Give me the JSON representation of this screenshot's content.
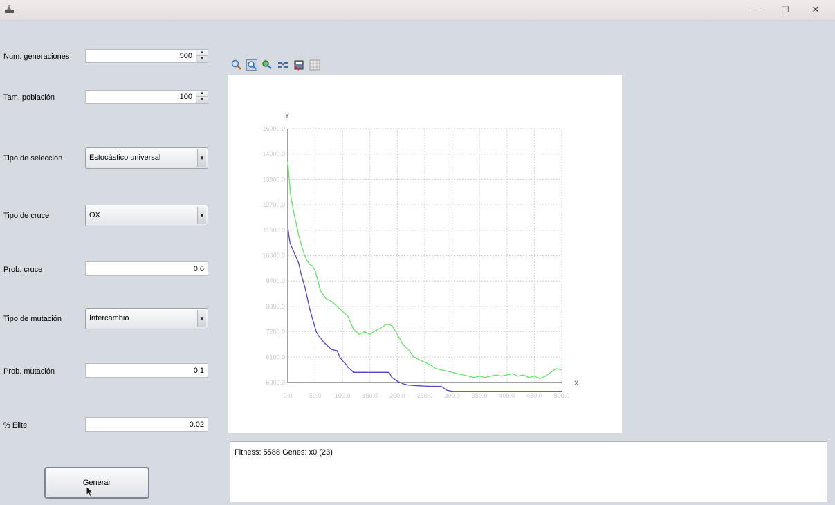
{
  "window": {
    "minimize_glyph": "—",
    "maximize_glyph": "☐",
    "close_glyph": "✕"
  },
  "params": {
    "num_generaciones": {
      "label": "Num. generaciones",
      "value": "500"
    },
    "tam_poblacion": {
      "label": "Tam. población",
      "value": "100"
    },
    "tipo_seleccion": {
      "label": "Tipo de seleccion",
      "value": "Estocástico universal"
    },
    "tipo_cruce": {
      "label": "Tipo de cruce",
      "value": "OX"
    },
    "prob_cruce": {
      "label": "Prob. cruce",
      "value": "0.6"
    },
    "tipo_mutacion": {
      "label": "Tipo de mutación",
      "value": "Intercambio"
    },
    "prob_mutacion": {
      "label": "Prob. mutación",
      "value": "0.1"
    },
    "elite": {
      "label": "% Élite",
      "value": "0.02"
    }
  },
  "generate_button": {
    "label": "Generar"
  },
  "toolbar_icons": [
    "zoom-in-icon",
    "zoom-out-icon",
    "fit-icon",
    "center-icon",
    "save-icon",
    "grid-icon"
  ],
  "output": {
    "text": "Fitness: 5588 Genes: x0 (23)"
  },
  "chart_data": {
    "type": "line",
    "xlabel": "X",
    "ylabel": "Y",
    "xlim": [
      0,
      500
    ],
    "ylim": [
      6000,
      16000
    ],
    "x_ticks": [
      "0.0",
      "50.0",
      "100.0",
      "150.0",
      "200.0",
      "250.0",
      "300.0",
      "350.0",
      "400.0",
      "450.0",
      "500.0"
    ],
    "y_ticks": [
      "6000.0",
      "6100.0",
      "7200.0",
      "8300.0",
      "9400.0",
      "10600.0",
      "11600.0",
      "12700.0",
      "13800.0",
      "14900.0",
      "16000.0"
    ],
    "grid": true,
    "series": [
      {
        "color": "#66e26a",
        "x": [
          0,
          5,
          10,
          15,
          20,
          25,
          30,
          35,
          40,
          45,
          50,
          55,
          60,
          70,
          80,
          90,
          100,
          110,
          120,
          130,
          140,
          150,
          160,
          170,
          180,
          190,
          200,
          210,
          220,
          230,
          240,
          250,
          260,
          270,
          280,
          290,
          300,
          310,
          320,
          330,
          340,
          350,
          360,
          370,
          380,
          390,
          400,
          410,
          420,
          430,
          440,
          450,
          460,
          470,
          480,
          490,
          500
        ],
        "y": [
          14700,
          13400,
          12800,
          12300,
          11800,
          11400,
          11050,
          10800,
          10650,
          10600,
          10400,
          10000,
          9600,
          9300,
          9200,
          9000,
          8800,
          8600,
          8100,
          7900,
          8000,
          7900,
          8050,
          8150,
          8300,
          8250,
          7900,
          7500,
          7300,
          7000,
          6900,
          6800,
          6700,
          6550,
          6500,
          6450,
          6400,
          6350,
          6300,
          6250,
          6200,
          6250,
          6200,
          6250,
          6300,
          6250,
          6300,
          6350,
          6250,
          6300,
          6200,
          6250,
          6150,
          6250,
          6400,
          6550,
          6500
        ]
      },
      {
        "color": "#5b3fc7",
        "x": [
          0,
          4,
          8,
          12,
          16,
          20,
          24,
          28,
          32,
          36,
          40,
          44,
          48,
          52,
          56,
          60,
          65,
          70,
          80,
          90,
          95,
          100,
          105,
          110,
          115,
          120,
          130,
          140,
          150,
          160,
          170,
          180,
          185,
          190,
          200,
          210,
          220,
          230,
          240,
          250,
          260,
          270,
          280,
          290,
          300,
          350,
          400,
          450,
          500
        ],
        "y": [
          12100,
          11500,
          11300,
          11100,
          10900,
          10700,
          10300,
          10000,
          9700,
          9300,
          8900,
          8600,
          8300,
          8000,
          7850,
          7750,
          7600,
          7500,
          7300,
          7250,
          7000,
          6850,
          6750,
          6600,
          6500,
          6400,
          6400,
          6400,
          6400,
          6400,
          6400,
          6400,
          6400,
          6200,
          6050,
          5950,
          5900,
          5880,
          5870,
          5860,
          5850,
          5850,
          5850,
          5700,
          5650,
          5650,
          5650,
          5650,
          5650
        ]
      }
    ]
  }
}
